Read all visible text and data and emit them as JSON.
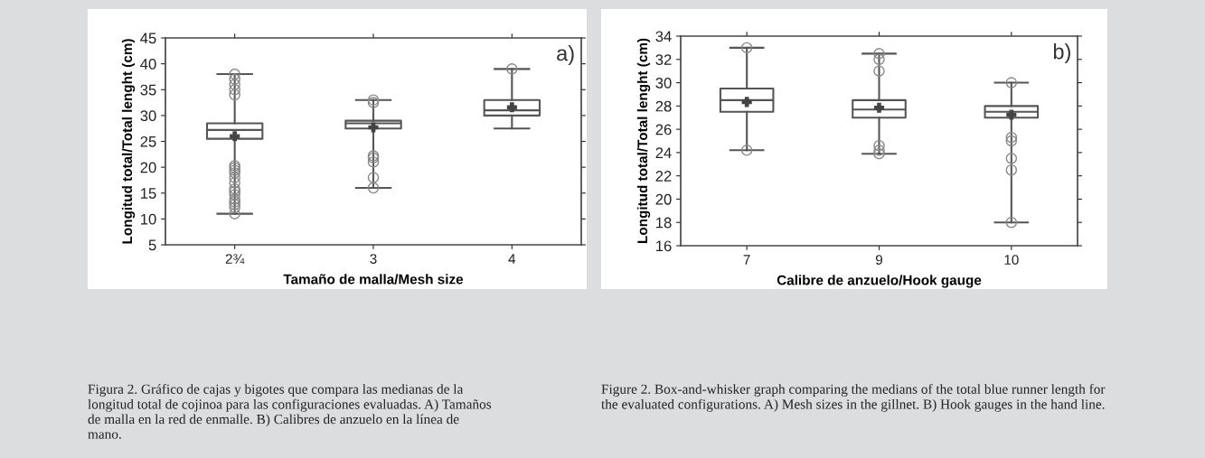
{
  "chart_data": [
    {
      "type": "box",
      "xlabel": "Tamaño de malla/Mesh size",
      "ylabel": "Longitud total/Total lenght (cm)",
      "categories": [
        "2¾",
        "3",
        "4"
      ],
      "ylim": [
        5,
        45
      ],
      "yticks": [
        5,
        10,
        15,
        20,
        25,
        30,
        35,
        40,
        45
      ],
      "grid": false,
      "legend": false,
      "boxes": [
        {
          "low": 11,
          "q1": 25.5,
          "median": 27.2,
          "q3": 28.5,
          "high": 38,
          "mean": 26,
          "outliers": [
            38,
            37,
            36,
            35,
            34,
            20.3,
            19.9,
            19.4,
            18.9,
            18,
            17,
            15.8,
            15.3,
            14.7,
            13.8,
            13.3,
            12.8,
            12.2,
            11
          ]
        },
        {
          "low": 16,
          "q1": 27.5,
          "median": 28.5,
          "q3": 29,
          "high": 33,
          "mean": 27.7,
          "outliers": [
            33,
            32.5,
            22.2,
            21.8,
            21,
            18,
            16
          ]
        },
        {
          "low": 27.5,
          "q1": 30,
          "median": 31,
          "q3": 33,
          "high": 39,
          "mean": 31.6,
          "outliers": [
            39
          ]
        }
      ],
      "annotations": [
        "a)",
        "Figura 2. Gráfico de cajas y bigotes que compara las medianas de la longitud total de cojinoa para las configuraciones evaluadas. A) Tamaños de malla en la red de enmalle. B) Calibres de anzuelo en la línea de mano."
      ]
    },
    {
      "type": "box",
      "xlabel": "Calibre de anzuelo/Hook gauge",
      "ylabel": "Longitud total/Total lenght (cm)",
      "categories": [
        "7",
        "9",
        "10"
      ],
      "ylim": [
        16,
        34
      ],
      "yticks": [
        16,
        18,
        20,
        22,
        24,
        26,
        28,
        30,
        32,
        34
      ],
      "grid": false,
      "legend": false,
      "boxes": [
        {
          "low": 24.2,
          "q1": 27.5,
          "median": 28.5,
          "q3": 29.5,
          "high": 33,
          "mean": 28.35,
          "outliers": [
            33,
            24.2
          ]
        },
        {
          "low": 23.9,
          "q1": 27,
          "median": 27.7,
          "q3": 28.5,
          "high": 32.5,
          "mean": 27.85,
          "outliers": [
            32.5,
            32,
            31,
            24.6,
            24.2,
            23.9
          ]
        },
        {
          "low": 18,
          "q1": 27,
          "median": 27.5,
          "q3": 28,
          "high": 30,
          "mean": 27.25,
          "outliers": [
            30,
            25.3,
            25,
            23.5,
            22.5,
            18
          ]
        }
      ],
      "annotations": [
        "b)",
        "Figure 2. Box-and-whisker graph comparing the medians of the total blue runner length for the evaluated configurations. A) Mesh sizes in the gillnet. B) Hook gauges in the hand line."
      ]
    }
  ]
}
